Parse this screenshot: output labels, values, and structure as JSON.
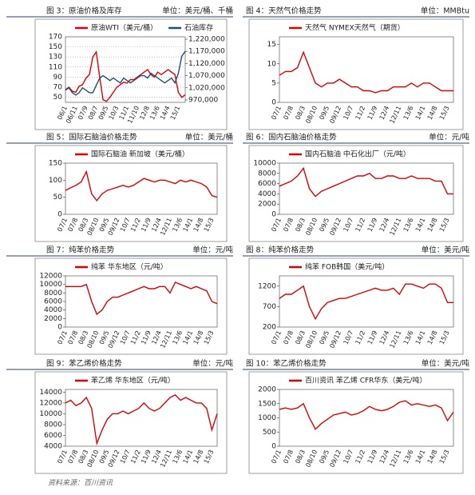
{
  "chart_data": [
    {
      "type": "line",
      "caption": "图 3：原油价格及库存",
      "unit": "单位：美元/桶、千桶",
      "grid": true,
      "categories": [
        "06/1",
        null,
        null,
        "06/11",
        null,
        null,
        "07/9",
        null,
        null,
        "08/7",
        null,
        null,
        "09/5",
        null,
        null,
        "10/3",
        null,
        null,
        "11/1",
        null,
        null,
        "11/10",
        null,
        null,
        "12/8",
        null,
        null,
        "13/6",
        null,
        null,
        "14/4",
        null,
        null,
        "15/1",
        null,
        null
      ],
      "series": [
        {
          "name": "原油WTI（美元/桶）",
          "color": "#e00000",
          "values": [
            65,
            70,
            62,
            60,
            72,
            75,
            88,
            95,
            130,
            140,
            90,
            45,
            42,
            50,
            60,
            70,
            75,
            80,
            78,
            85,
            85,
            90,
            95,
            100,
            105,
            95,
            90,
            100,
            95,
            100,
            105,
            100,
            95,
            60,
            50,
            55
          ]
        },
        {
          "name": "石油库存",
          "color": "#1f4e79",
          "axis": "y2",
          "values": [
            1010000,
            1020000,
            1000000,
            990000,
            1000000,
            1020000,
            1010000,
            1000000,
            1000000,
            1030000,
            1060000,
            1070000,
            1060000,
            1050000,
            1060000,
            1050000,
            1040000,
            1060000,
            1050000,
            1040000,
            1050000,
            1060000,
            1070000,
            1070000,
            1060000,
            1080000,
            1070000,
            1060000,
            1050000,
            1040000,
            1050000,
            1060000,
            1040000,
            1080000,
            1150000,
            1170000
          ]
        }
      ],
      "ylim": [
        40,
        170
      ],
      "yticks": [
        50,
        70,
        90,
        110,
        130,
        150,
        170
      ],
      "y2lim": [
        960000,
        1230000
      ],
      "y2ticks": [
        {
          "value": 970000,
          "label": "970,000"
        },
        {
          "value": 1020000,
          "label": "1,020,000"
        },
        {
          "value": 1070000,
          "label": "1,070,000"
        },
        {
          "value": 1120000,
          "label": "1,120,000"
        },
        {
          "value": 1170000,
          "label": "1,170,000"
        },
        {
          "value": 1220000,
          "label": "1,220,000"
        }
      ]
    },
    {
      "type": "line",
      "caption": "图 4：天然气价格走势",
      "unit": "单位：MMBtu",
      "grid": false,
      "categories": [
        "07/1",
        null,
        "07/8",
        null,
        "08/3",
        null,
        "08/10",
        null,
        "09/5",
        null,
        "09/12",
        null,
        "10/7",
        null,
        "11/2",
        null,
        "11/9",
        null,
        "12/4",
        null,
        "12/11",
        null,
        "13/6",
        null,
        "14/1",
        null,
        "14/8",
        null,
        "15/3",
        null
      ],
      "series": [
        {
          "name": "天然气 NYMEX天然气（期货）",
          "color": "#e00000",
          "values": [
            7,
            8,
            8,
            9,
            13,
            9,
            5,
            4,
            5,
            5,
            6,
            5,
            4,
            4,
            3,
            3,
            2.5,
            3,
            3,
            4,
            4,
            4,
            5,
            4,
            5,
            5,
            4,
            3,
            3,
            3
          ]
        }
      ],
      "ylim": [
        0,
        17
      ],
      "yticks": [
        0,
        5,
        10,
        15
      ]
    },
    {
      "type": "line",
      "caption": "图 5：国际石脑油价格走势",
      "unit": "单位：美元/桶",
      "grid": false,
      "categories": [
        "07/1",
        null,
        "07/8",
        null,
        "08/3",
        null,
        "08/10",
        null,
        "09/5",
        null,
        "09/12",
        null,
        "10/7",
        null,
        "11/2",
        null,
        "11/9",
        null,
        "12/4",
        null,
        "12/11",
        null,
        "13/6",
        null,
        "14/1",
        null,
        "14/8",
        null,
        "15/3",
        null
      ],
      "series": [
        {
          "name": "国际石脑油 新加坡（美元/桶）",
          "color": "#e00000",
          "values": [
            70,
            78,
            85,
            95,
            125,
            60,
            40,
            60,
            70,
            75,
            80,
            85,
            80,
            85,
            95,
            105,
            100,
            95,
            100,
            100,
            95,
            90,
            100,
            95,
            100,
            95,
            90,
            80,
            55,
            50
          ]
        }
      ],
      "ylim": [
        0,
        150
      ],
      "yticks": [
        0,
        50,
        100,
        150
      ]
    },
    {
      "type": "line",
      "caption": "图 6：国内石脑油价格走势",
      "unit": "单位：元/吨",
      "grid": false,
      "categories": [
        "07/1",
        null,
        "07/8",
        null,
        "08/3",
        null,
        "08/10",
        null,
        "09/5",
        null,
        "09/12",
        null,
        "10/7",
        null,
        "11/2",
        null,
        "11/9",
        null,
        "12/4",
        null,
        "12/11",
        null,
        "13/6",
        null,
        "14/1",
        null,
        "14/8",
        null,
        "15/3",
        null
      ],
      "series": [
        {
          "name": "国内石脑油 中石化出厂（元/吨）",
          "color": "#e00000",
          "values": [
            5500,
            6000,
            6500,
            7500,
            9000,
            5000,
            3500,
            4500,
            5000,
            5500,
            6000,
            6500,
            7000,
            7500,
            7500,
            8000,
            7000,
            7000,
            7500,
            7500,
            7000,
            7000,
            7500,
            7000,
            7000,
            7000,
            6500,
            6500,
            4000,
            4000
          ]
        }
      ],
      "ylim": [
        0,
        10000
      ],
      "yticks": [
        0,
        2000,
        4000,
        6000,
        8000,
        10000
      ]
    },
    {
      "type": "line",
      "caption": "图 7：纯苯价格走势",
      "unit": "单位：元/吨",
      "grid": false,
      "categories": [
        "07/1",
        null,
        "07/8",
        null,
        "08/3",
        null,
        "08/10",
        null,
        "09/5",
        null,
        "09/12",
        null,
        "10/7",
        null,
        "11/2",
        null,
        "11/9",
        null,
        "12/4",
        null,
        "12/11",
        null,
        "13/6",
        null,
        "14/1",
        null,
        "14/8",
        null,
        "15/3",
        null
      ],
      "series": [
        {
          "name": "纯苯 华东地区（元/吨）",
          "color": "#e00000",
          "values": [
            9500,
            9500,
            9500,
            9500,
            10000,
            6000,
            3000,
            4000,
            6000,
            7000,
            7000,
            7500,
            8000,
            8500,
            9000,
            9500,
            9000,
            9000,
            9500,
            9500,
            8000,
            10500,
            10000,
            9500,
            9000,
            9500,
            9000,
            8500,
            6000,
            5500
          ]
        }
      ],
      "ylim": [
        0,
        12000
      ],
      "yticks": [
        0,
        2000,
        4000,
        6000,
        8000,
        10000,
        12000
      ]
    },
    {
      "type": "line",
      "caption": "图 8：纯苯价格走势",
      "unit": "单位：美元/吨",
      "grid": false,
      "categories": [
        "07/1",
        null,
        "07/8",
        null,
        "08/3",
        null,
        "08/10",
        null,
        "09/5",
        null,
        "09/12",
        null,
        "10/7",
        null,
        "11/2",
        null,
        "11/9",
        null,
        "12/4",
        null,
        "12/11",
        null,
        "13/6",
        null,
        "14/1",
        null,
        "14/8",
        null,
        "15/3",
        null
      ],
      "series": [
        {
          "name": "纯苯 FOB韩国（美元/吨）",
          "color": "#e00000",
          "values": [
            900,
            1000,
            1000,
            1100,
            1200,
            700,
            400,
            650,
            800,
            850,
            900,
            900,
            950,
            1000,
            1050,
            1100,
            1150,
            1100,
            1100,
            1150,
            1000,
            1250,
            1250,
            1200,
            1150,
            1250,
            1250,
            1150,
            800,
            800
          ]
        }
      ],
      "ylim": [
        200,
        1450
      ],
      "yticks": [
        200,
        700,
        1200
      ]
    },
    {
      "type": "line",
      "caption": "图 9：苯乙烯价格走势",
      "unit": "单位：元/吨",
      "grid": false,
      "categories": [
        "07/1",
        null,
        "07/8",
        null,
        "08/3",
        null,
        "08/10",
        null,
        "09/5",
        null,
        "09/12",
        null,
        "10/7",
        null,
        "11/2",
        null,
        "11/9",
        null,
        "12/4",
        null,
        "12/11",
        null,
        "13/6",
        null,
        "14/1",
        null,
        "14/8",
        null,
        "15/3",
        null
      ],
      "series": [
        {
          "name": "苯乙烯 华东地区（元/吨）",
          "color": "#e00000",
          "values": [
            12000,
            12500,
            11500,
            12000,
            13000,
            11000,
            4500,
            7000,
            9000,
            10000,
            10000,
            10500,
            10000,
            10500,
            11000,
            12000,
            11000,
            10500,
            11000,
            12000,
            13000,
            13500,
            12500,
            13000,
            12500,
            12000,
            12000,
            11000,
            7000,
            10000
          ]
        }
      ],
      "ylim": [
        4000,
        14500
      ],
      "yticks": [
        4000,
        6000,
        8000,
        10000,
        12000,
        14000
      ]
    },
    {
      "type": "line",
      "caption": "图 10：苯乙烯价格走势",
      "unit": "单位：美元/吨",
      "grid": false,
      "categories": [
        "07/1",
        null,
        "07/8",
        null,
        "08/3",
        null,
        "08/10",
        null,
        "09/5",
        null,
        "09/12",
        null,
        "10/7",
        null,
        "11/2",
        null,
        "11/9",
        null,
        "12/4",
        null,
        "12/11",
        null,
        "13/6",
        null,
        "14/1",
        null,
        "14/8",
        null,
        "15/3",
        null
      ],
      "series": [
        {
          "name": "百川资讯 苯乙烯 CFR华东（美元/吨）",
          "color": "#e00000",
          "values": [
            1300,
            1350,
            1300,
            1350,
            1500,
            1000,
            600,
            800,
            950,
            1100,
            1150,
            1200,
            1100,
            1150,
            1250,
            1400,
            1300,
            1250,
            1300,
            1400,
            1550,
            1600,
            1450,
            1500,
            1450,
            1400,
            1450,
            1350,
            900,
            1200
          ]
        }
      ],
      "ylim": [
        0,
        2000
      ],
      "yticks": [
        0,
        500,
        1000,
        1500,
        2000
      ]
    }
  ],
  "source": "资料来源：百川资讯"
}
